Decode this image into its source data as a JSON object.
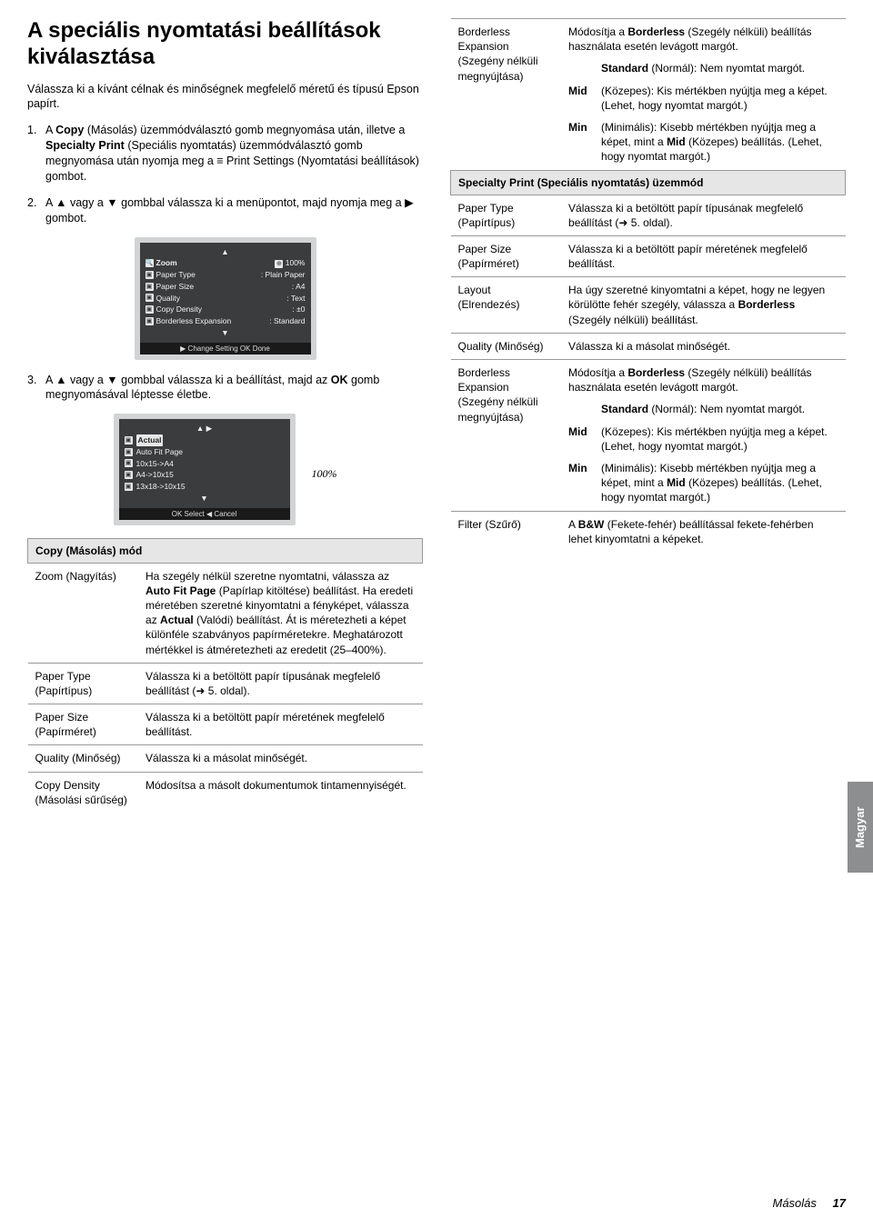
{
  "heading": "A speciális nyomtatási beállítások kiválasztása",
  "intro": "Válassza ki a kívánt célnak és minőségnek megfelelő méretű és típusú Epson papírt.",
  "steps": [
    {
      "n": "1.",
      "text": "A <b>Copy</b> (Másolás) üzemmódválasztó gomb megnyomása után, illetve a <b>Specialty Print</b> (Speciális nyomtatás) üzemmódválasztó gomb megnyomása után nyomja meg a ≡ Print Settings (Nyomtatási beállítások) gombot."
    },
    {
      "n": "2.",
      "text": "A ▲ vagy a ▼ gombbal válassza ki a menüpontot, majd nyomja meg a ▶ gombot."
    },
    {
      "n": "3.",
      "text": "A ▲ vagy a ▼ gombbal válassza ki a beállítást, majd az <b>OK</b> gomb megnyomásával léptesse életbe."
    }
  ],
  "lcd1": {
    "top_a": "▲",
    "zoom": "Zoom",
    "zoom_v": "100%",
    "rows": [
      {
        "k": "Paper Type",
        "v": ": Plain Paper"
      },
      {
        "k": "Paper Size",
        "v": ": A4"
      },
      {
        "k": "Quality",
        "v": ": Text"
      },
      {
        "k": "Copy Density",
        "v": ": ±0"
      },
      {
        "k": "Borderless Expansion",
        "v": ": Standard"
      }
    ],
    "bot_a": "▼",
    "footer": "▶ Change Setting  OK Done"
  },
  "lcd2": {
    "top": "▲   ▶",
    "items": [
      "Actual",
      "Auto Fit Page",
      "10x15->A4",
      "A4->10x15",
      "13x18->10x15"
    ],
    "hl_index": 0,
    "bot": "▼",
    "footer": "OK Select  ◀ Cancel",
    "pct": "100%"
  },
  "copyModeHeader": "Copy (Másolás) mód",
  "copyTable": [
    {
      "lbl": "Zoom (Nagyítás)",
      "desc": "Ha szegély nélkül szeretne nyomtatni, válassza az <b>Auto Fit Page</b> (Papírlap kitöltése) beállítást. Ha eredeti méretében szeretné kinyomtatni a fényképet, válassza az <b>Actual</b> (Valódi) beállítást. Át is méretezheti a képet különféle szabványos papírméretekre. Meghatározott mértékkel is átméretezheti az eredetit (25–400%)."
    },
    {
      "lbl": "Paper Type (Papírtípus)",
      "desc": "Válassza ki a betöltött papír típusának megfelelő beállítást (➜ 5. oldal)."
    },
    {
      "lbl": "Paper Size (Papírméret)",
      "desc": "Válassza ki a betöltött papír méretének megfelelő beállítást."
    },
    {
      "lbl": "Quality (Minőség)",
      "desc": "Válassza ki a másolat minőségét."
    },
    {
      "lbl": "Copy Density (Másolási sűrűség)",
      "desc": "Módosítsa a másolt dokumentumok tintamennyiségét."
    }
  ],
  "rightTable1": [
    {
      "lbl": "Borderless Expansion (Szegény nélküli megnyújtása)",
      "desc": "Módosítja a <b>Borderless</b> (Szegély nélküli) beállítás használata esetén levágott margót.",
      "sub": [
        {
          "k": "",
          "v": "<b>Standard</b> (Normál): Nem nyomtat margót."
        },
        {
          "k": "Mid",
          "v": "(Közepes): Kis mértékben nyújtja meg a képet. (Lehet, hogy nyomtat margót.)"
        },
        {
          "k": "Min",
          "v": "(Minimális): Kisebb mértékben nyújtja meg a képet, mint a <b>Mid</b> (Közepes) beállítás. (Lehet, hogy nyomtat margót.)"
        }
      ]
    }
  ],
  "specialtyHeader": "Specialty Print (Speciális nyomtatás) üzemmód",
  "rightTable2": [
    {
      "lbl": "Paper Type (Papírtípus)",
      "desc": "Válassza ki a betöltött papír típusának megfelelő beállítást (➜ 5. oldal)."
    },
    {
      "lbl": "Paper Size (Papírméret)",
      "desc": "Válassza ki a betöltött papír méretének megfelelő beállítást."
    },
    {
      "lbl": "Layout (Elrendezés)",
      "desc": "Ha úgy szeretné kinyomtatni a képet, hogy ne legyen körülötte fehér szegély, válassza a <b>Borderless</b> (Szegély nélküli) beállítást."
    },
    {
      "lbl": "Quality (Minőség)",
      "desc": "Válassza ki a másolat minőségét."
    },
    {
      "lbl": "Borderless Expansion (Szegény nélküli megnyújtása)",
      "desc": "Módosítja a <b>Borderless</b> (Szegély nélküli) beállítás használata esetén levágott margót.",
      "sub": [
        {
          "k": "",
          "v": "<b>Standard</b> (Normál): Nem nyomtat margót."
        },
        {
          "k": "Mid",
          "v": "(Közepes): Kis mértékben nyújtja meg a képet. (Lehet, hogy nyomtat margót.)"
        },
        {
          "k": "Min",
          "v": "(Minimális): Kisebb mértékben nyújtja meg a képet, mint a <b>Mid</b> (Közepes) beállítás. (Lehet, hogy nyomtat margót.)"
        }
      ]
    },
    {
      "lbl": "Filter (Szűrő)",
      "desc": "A <b>B&W</b> (Fekete-fehér) beállítással fekete-fehérben lehet kinyomtatni a képeket."
    }
  ],
  "sideTab": "Magyar",
  "footer": {
    "sec": "Másolás",
    "pg": "17"
  }
}
